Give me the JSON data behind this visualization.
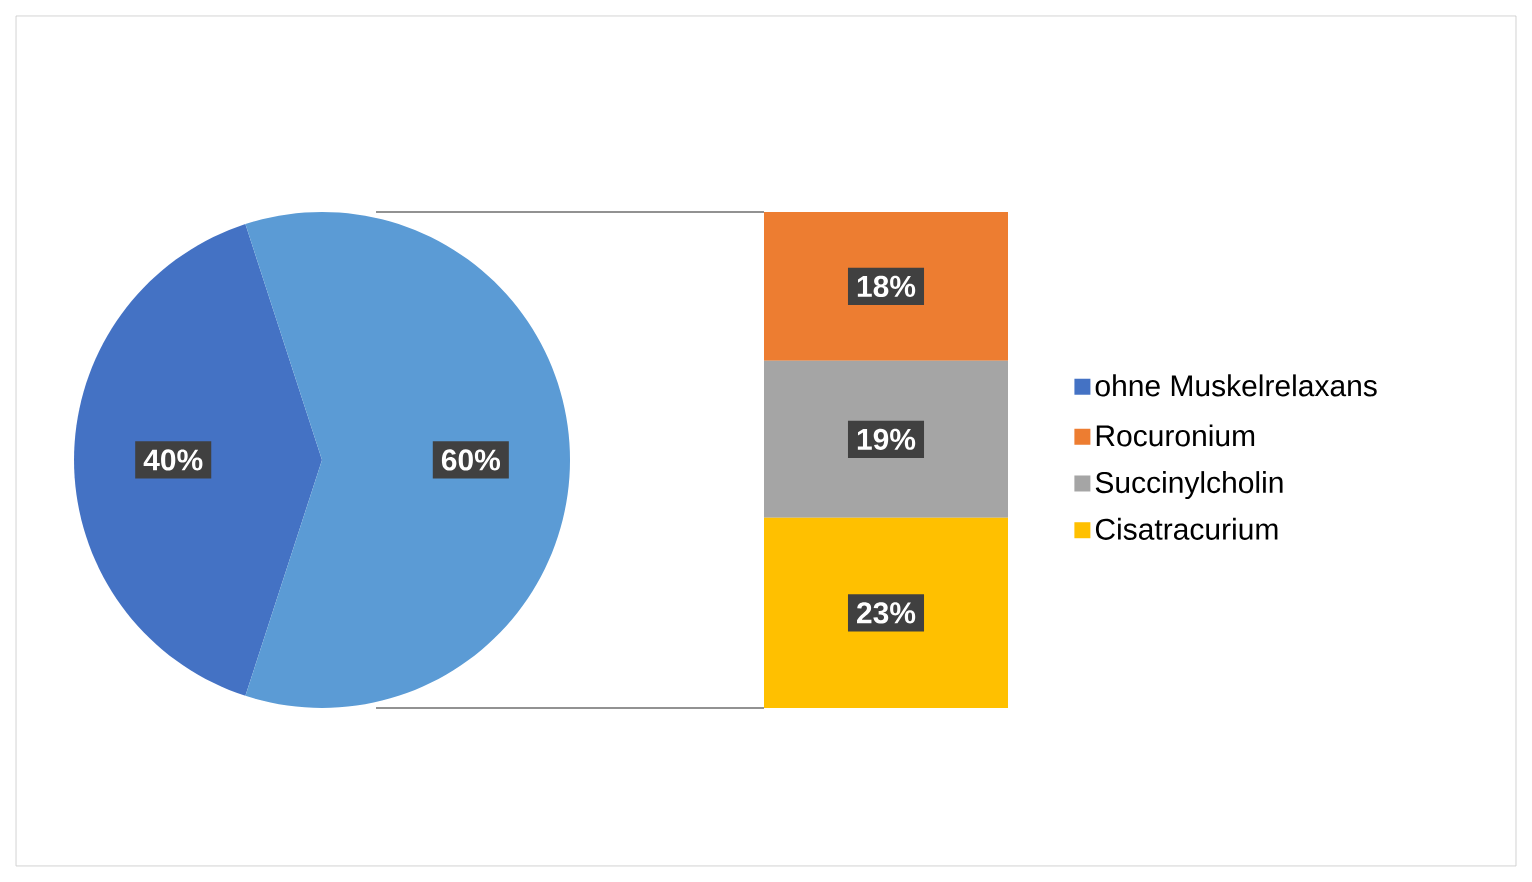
{
  "chart_data": [
    {
      "type": "pie",
      "categories": [
        "ohne Muskelrelaxans",
        null
      ],
      "values": [
        40,
        60
      ],
      "colors": [
        "#4472c4",
        "#5b9bd5"
      ],
      "value_labels": [
        "40%",
        "60%"
      ],
      "legend": "right"
    },
    {
      "type": "bar",
      "stacked": true,
      "categories": [
        null
      ],
      "legend": "right",
      "series": [
        {
          "name": "Cisatracurium",
          "color": "#ffc000",
          "values": [
            23
          ],
          "value_labels": [
            "23%"
          ]
        },
        {
          "name": "Succinylcholin",
          "color": "#a5a5a5",
          "values": [
            19
          ],
          "value_labels": [
            "19%"
          ]
        },
        {
          "name": "Rocuronium",
          "color": "#ed7d31",
          "values": [
            18
          ],
          "value_labels": [
            "18%"
          ]
        }
      ]
    }
  ]
}
